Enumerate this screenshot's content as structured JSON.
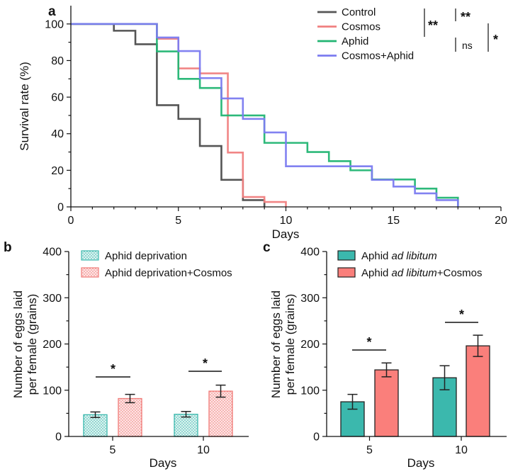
{
  "colors": {
    "control": "#555555",
    "cosmos": "#f08080",
    "aphid": "#22b573",
    "cosmos_aphid": "#7b7bf0",
    "teal": "#3bb8ad",
    "salmon": "#fa7f7b",
    "teal_light": "#d9f1ef",
    "salmon_light": "#fde3e3",
    "axis": "#111111"
  },
  "chart_data": [
    {
      "panel": "a",
      "type": "line",
      "step": true,
      "xlabel": "Days",
      "ylabel": "Survival rate (%)",
      "xlim": [
        0,
        20
      ],
      "ylim": [
        0,
        110
      ],
      "xticks": [
        0,
        5,
        10,
        15,
        20
      ],
      "yticks": [
        0,
        20,
        40,
        60,
        80,
        100
      ],
      "legend_position": "top-right",
      "series": [
        {
          "name": "Control",
          "color_key": "control",
          "x": [
            0,
            2,
            3,
            4,
            5,
            6,
            7,
            8,
            9
          ],
          "y": [
            100,
            96.3,
            88.9,
            55.6,
            48.1,
            33.3,
            14.8,
            3.7,
            0
          ]
        },
        {
          "name": "Cosmos",
          "color_key": "cosmos",
          "x": [
            0,
            4,
            5,
            6,
            7,
            7.3,
            8,
            9,
            10
          ],
          "y": [
            100,
            91.9,
            75.7,
            73.0,
            73.0,
            29.7,
            5.4,
            2.7,
            0
          ]
        },
        {
          "name": "Aphid",
          "color_key": "aphid",
          "x": [
            0,
            3,
            4,
            5,
            6,
            7,
            9,
            11,
            12,
            13,
            14,
            16,
            17,
            18
          ],
          "y": [
            100,
            100,
            85,
            70,
            65,
            50,
            35,
            30,
            25,
            20,
            15,
            10,
            5,
            0
          ]
        },
        {
          "name": "Cosmos+Aphid",
          "color_key": "cosmos_aphid",
          "x": [
            0,
            4,
            5,
            6,
            7,
            8,
            9,
            10,
            14,
            15,
            16,
            17,
            18
          ],
          "y": [
            100,
            92.6,
            85.2,
            70.4,
            59.3,
            48.1,
            40.7,
            22.2,
            14.8,
            11.1,
            7.4,
            3.7,
            0
          ]
        }
      ],
      "significance": [
        {
          "label": "**",
          "between": "Control vs Cosmos/Aphid/Cosmos+Aphid"
        },
        {
          "label": "**",
          "between": "Control vs Cosmos"
        },
        {
          "label": "ns",
          "between": "Aphid vs Cosmos+Aphid"
        },
        {
          "label": "*",
          "between": "Cosmos vs Aphid/Cosmos+Aphid"
        }
      ]
    },
    {
      "panel": "b",
      "type": "bar",
      "xlabel": "Days",
      "ylabel": "Number of eggs laid per female (grains)",
      "ylabel_lines": [
        "Number of eggs laid",
        "per female (grains)"
      ],
      "ylim": [
        0,
        400
      ],
      "yticks": [
        0,
        100,
        200,
        300,
        400
      ],
      "categories": [
        "5",
        "10"
      ],
      "legend_position": "top-left",
      "series": [
        {
          "name": "Aphid deprivation",
          "fill_key": "teal_light",
          "pattern": "dots-teal",
          "values": [
            47,
            48
          ],
          "errors": [
            6,
            6
          ]
        },
        {
          "name": "Aphid deprivation+Cosmos",
          "fill_key": "salmon_light",
          "pattern": "dots-salmon",
          "values": [
            82,
            98
          ],
          "errors": [
            9,
            13
          ]
        }
      ],
      "significance": [
        {
          "category": "5",
          "label": "*"
        },
        {
          "category": "10",
          "label": "*"
        }
      ]
    },
    {
      "panel": "c",
      "type": "bar",
      "xlabel": "Days",
      "ylabel": "Number of eggs laid per female (grains)",
      "ylabel_lines": [
        "Number of eggs laid",
        "per female (grains)"
      ],
      "ylim": [
        0,
        400
      ],
      "yticks": [
        0,
        100,
        200,
        300,
        400
      ],
      "categories": [
        "5",
        "10"
      ],
      "legend_position": "top-left",
      "series": [
        {
          "name": "Aphid ad libitum",
          "name_parts": [
            "Aphid ",
            "ad libitum",
            ""
          ],
          "fill_key": "teal",
          "values": [
            75,
            127
          ],
          "errors": [
            16,
            26
          ]
        },
        {
          "name": "Aphid ad libitum+Cosmos",
          "name_parts": [
            "Aphid ",
            "ad libitum",
            "+Cosmos"
          ],
          "fill_key": "salmon",
          "values": [
            144,
            196
          ],
          "errors": [
            15,
            23
          ]
        }
      ],
      "significance": [
        {
          "category": "5",
          "label": "*"
        },
        {
          "category": "10",
          "label": "*"
        }
      ]
    }
  ]
}
